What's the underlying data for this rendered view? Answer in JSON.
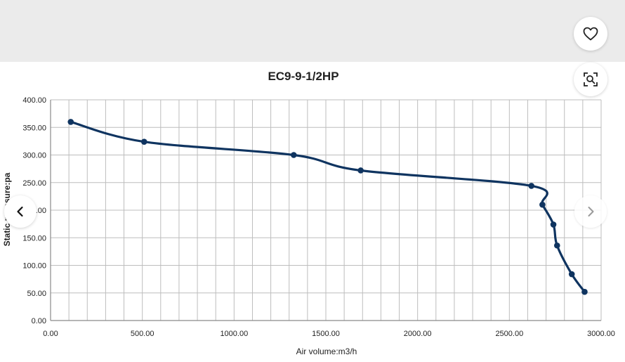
{
  "controls": {
    "favorite_icon": "heart-outline-icon",
    "visual_search_icon": "image-search-icon",
    "prev_icon": "chevron-left-icon",
    "next_icon": "chevron-right-icon"
  },
  "colors": {
    "series_line": "#0f3460",
    "grid": "#bdbdbd",
    "top_band": "#ebebeb"
  },
  "chart_data": {
    "type": "line",
    "title": "EC9-9-1/2HP",
    "xlabel": "Air volume:m3/h",
    "ylabel": "Static pressure:pa",
    "xlim": [
      0,
      3000
    ],
    "ylim": [
      0,
      400
    ],
    "x_ticks": [
      "0.00",
      "500.00",
      "1000.00",
      "1500.00",
      "2000.00",
      "2500.00",
      "3000.00"
    ],
    "y_ticks": [
      "0.00",
      "50.00",
      "100.00",
      "150.00",
      "200.00",
      "250.00",
      "300.00",
      "350.00",
      "400.00"
    ],
    "grid": true,
    "legend": "none",
    "series": [
      {
        "x": [
          110,
          510,
          1325,
          1690,
          2620,
          2680,
          2740,
          2760,
          2840,
          2910
        ],
        "y": [
          360,
          324,
          300,
          272,
          244,
          210,
          174,
          136,
          84,
          52
        ]
      }
    ]
  }
}
